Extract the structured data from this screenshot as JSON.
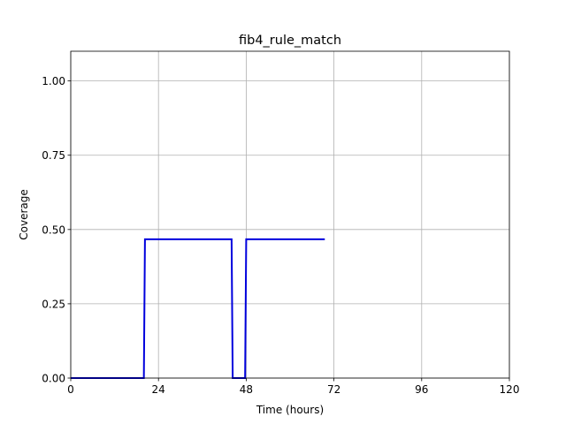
{
  "chart_data": {
    "type": "line",
    "title": "fib4_rule_match",
    "xlabel": "Time (hours)",
    "ylabel": "Coverage",
    "xlim": [
      0,
      120
    ],
    "ylim": [
      0,
      1.1
    ],
    "xticks": [
      0,
      24,
      48,
      72,
      96,
      120
    ],
    "yticks": [
      0.0,
      0.25,
      0.5,
      0.75,
      1.0
    ],
    "xtick_labels": [
      "0",
      "24",
      "48",
      "72",
      "96",
      "120"
    ],
    "ytick_labels": [
      "0.00",
      "0.25",
      "0.50",
      "0.75",
      "1.00"
    ],
    "grid": true,
    "series": [
      {
        "color": "#0000dd",
        "x": [
          0,
          20,
          20.3,
          44,
          44.3,
          47.7,
          48,
          69.5
        ],
        "y": [
          0,
          0,
          0.467,
          0.467,
          0,
          0,
          0.467,
          0.467
        ]
      }
    ]
  }
}
